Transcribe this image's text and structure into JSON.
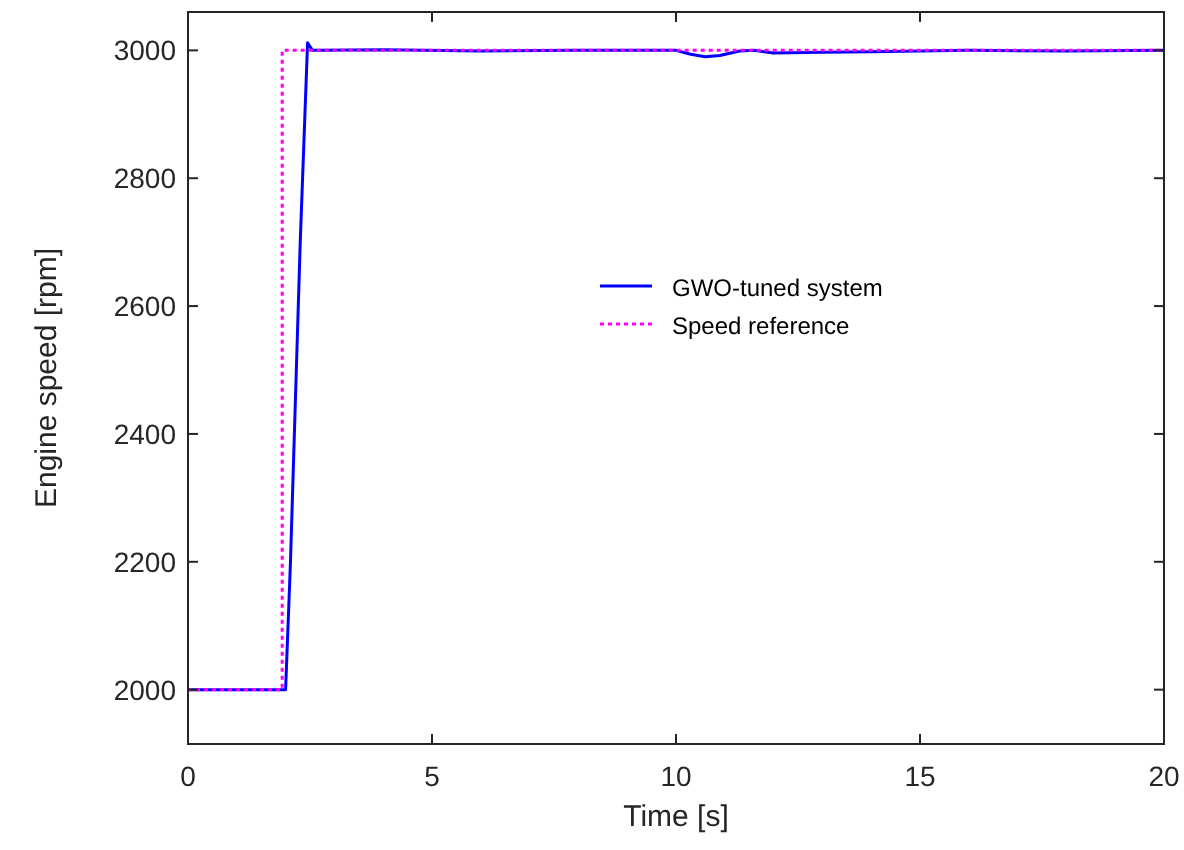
{
  "chart_data": {
    "type": "line",
    "xlabel": "Time [s]",
    "ylabel": "Engine speed [rpm]",
    "xlim": [
      0,
      20
    ],
    "ylim": [
      1915,
      3060
    ],
    "xticks": [
      0,
      5,
      10,
      15,
      20
    ],
    "yticks": [
      2000,
      2200,
      2400,
      2600,
      2800,
      3000
    ],
    "grid": false,
    "legend": "center",
    "marker": "none",
    "series": [
      {
        "name": "GWO-tuned system",
        "color": "#0000ff",
        "line_style": "solid",
        "x": [
          0,
          1,
          2.0,
          2.1,
          2.3,
          2.45,
          2.55,
          2.7,
          4,
          6,
          8,
          10,
          10.3,
          10.6,
          10.9,
          11.3,
          11.6,
          12,
          13,
          14,
          16,
          18,
          20
        ],
        "values": [
          2000,
          2000,
          2000,
          2200,
          2700,
          3012,
          3000,
          3000,
          3001,
          2999,
          3000,
          3000,
          2994,
          2990,
          2992,
          2999,
          3000,
          2996,
          2997,
          2998,
          3000,
          2999,
          3000
        ]
      },
      {
        "name": "Speed reference",
        "color": "#ff00ff",
        "line_style": "dotted",
        "x": [
          0,
          1.93,
          1.93,
          20
        ],
        "values": [
          2000,
          2000,
          3000,
          3000
        ]
      }
    ]
  }
}
